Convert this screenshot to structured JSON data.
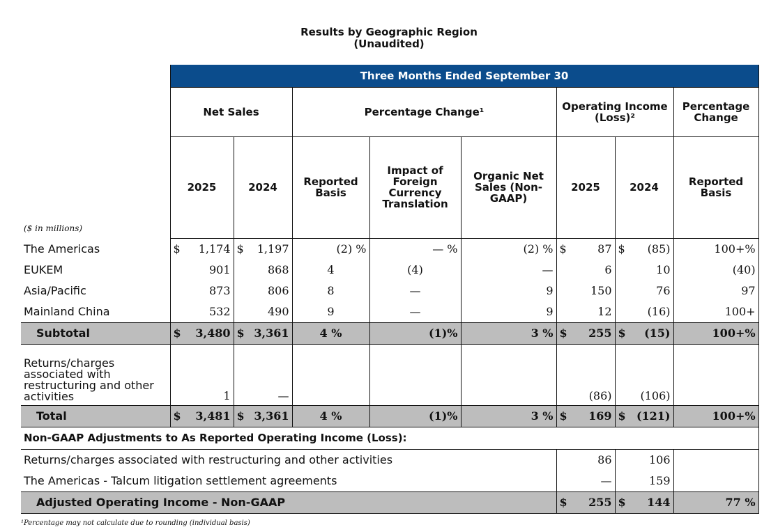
{
  "title": "Results by Geographic Region",
  "subtitle": "(Unaudited)",
  "banner": "Three Months Ended September 30",
  "units": "($ in millions)",
  "groups": {
    "net_sales": "Net Sales",
    "pct_change": "Percentage Change¹",
    "op_income": "Operating Income (Loss)²",
    "pct_change2": "Percentage Change"
  },
  "cols": {
    "y2025": "2025",
    "y2024": "2024",
    "reported": "Reported Basis",
    "fx": "Impact of Foreign Currency Translation",
    "organic": "Organic Net Sales (Non-GAAP)",
    "oi2025": "2025",
    "oi2024": "2024",
    "reported2": "Reported Basis"
  },
  "rows": [
    {
      "label": "The Americas",
      "ns25_sym": "$",
      "ns25": "1,174",
      "ns24_sym": "$",
      "ns24": "1,197",
      "rep": "(2) %",
      "fx": "— %",
      "org": "(2) %",
      "oi25_sym": "$",
      "oi25": "87",
      "oi24_sym": "$",
      "oi24": "(85)",
      "rep2": "100+%"
    },
    {
      "label": "EUKEM",
      "ns25": "901",
      "ns24": "868",
      "rep": "4",
      "fx": "(4)",
      "org": "—",
      "oi25": "6",
      "oi24": "10",
      "rep2": "(40)"
    },
    {
      "label": "Asia/Pacific",
      "ns25": "873",
      "ns24": "806",
      "rep": "8",
      "fx": "—",
      "org": "9",
      "oi25": "150",
      "oi24": "76",
      "rep2": "97"
    },
    {
      "label": "Mainland China",
      "ns25": "532",
      "ns24": "490",
      "rep": "9",
      "fx": "—",
      "org": "9",
      "oi25": "12",
      "oi24": "(16)",
      "rep2": "100+"
    }
  ],
  "subtotal": {
    "label": "Subtotal",
    "sym": "$",
    "ns25": "3,480",
    "ns24": "3,361",
    "rep": "4 %",
    "fx": "(1)%",
    "org": "3 %",
    "oi25": "255",
    "oi24": "(15)",
    "rep2": "100+%"
  },
  "returns": {
    "label": "Returns/charges associated with restructuring and other activities",
    "ns25": "1",
    "ns24": "—",
    "oi25": "(86)",
    "oi24": "(106)"
  },
  "total": {
    "label": "Total",
    "sym": "$",
    "ns25": "3,481",
    "ns24": "3,361",
    "rep": "4 %",
    "fx": "(1)%",
    "org": "3 %",
    "oi25": "169",
    "oi24": "(121)",
    "rep2": "100+%"
  },
  "nongaap_header": "Non-GAAP Adjustments to As Reported Operating Income (Loss):",
  "adj_rows": [
    {
      "label": "Returns/charges associated with restructuring and other activities",
      "oi25": "86",
      "oi24": "106"
    },
    {
      "label": "The Americas - Talcum litigation settlement agreements",
      "oi25": "—",
      "oi24": "159"
    }
  ],
  "adjusted": {
    "label": "Adjusted Operating Income - Non-GAAP",
    "sym": "$",
    "oi25": "255",
    "oi24": "144",
    "rep2": "77 %"
  },
  "footnote": "¹Percentage may not calculate due to rounding (individual basis)"
}
